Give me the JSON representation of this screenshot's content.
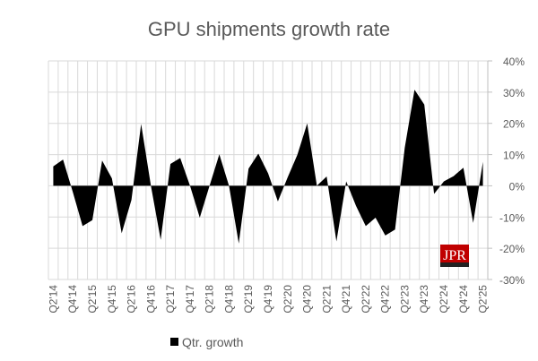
{
  "chart_data": {
    "type": "area",
    "title": "GPU shipments growth rate",
    "categories": [
      "Q2'14",
      "Q3'14",
      "Q4'14",
      "Q1'15",
      "Q2'15",
      "Q3'15",
      "Q4'15",
      "Q1'16",
      "Q2'16",
      "Q3'16",
      "Q4'16",
      "Q1'17",
      "Q2'17",
      "Q3'17",
      "Q4'17",
      "Q1'18",
      "Q2'18",
      "Q3'18",
      "Q4'18",
      "Q1'19",
      "Q2'19",
      "Q3'19",
      "Q4'19",
      "Q1'20",
      "Q2'20",
      "Q3'20",
      "Q4'20",
      "Q1'21",
      "Q2'21",
      "Q3'21",
      "Q4'21",
      "Q1'22",
      "Q2'22",
      "Q3'22",
      "Q4'22",
      "Q1'23",
      "Q2'23",
      "Q3'23",
      "Q4'23",
      "Q1'24",
      "Q2'24",
      "Q3'24",
      "Q4'24",
      "Q1'25",
      "Q2'25"
    ],
    "tick_labels": [
      "Q2'14",
      "Q4'14",
      "Q2'15",
      "Q4'15",
      "Q2'16",
      "Q4'16",
      "Q2'17",
      "Q4'17",
      "Q2'18",
      "Q4'18",
      "Q2'19",
      "Q4'19",
      "Q2'20",
      "Q4'20",
      "Q2'21",
      "Q4'21",
      "Q2'22",
      "Q4'22",
      "Q2'23",
      "Q4'23",
      "Q2'24",
      "Q4'24",
      "Q2'25"
    ],
    "series": [
      {
        "name": "Qtr. growth",
        "color": "#000000",
        "values": [
          6.2,
          8.4,
          -2,
          -12.9,
          -11,
          8.1,
          2.4,
          -15.2,
          -4.5,
          19.8,
          0,
          -17.3,
          7,
          8.9,
          0,
          -10.2,
          0,
          10.1,
          0,
          -18.5,
          5.5,
          10.3,
          4,
          -5,
          2.7,
          10,
          20,
          0,
          3,
          -17.8,
          1.4,
          -6.4,
          -12.9,
          -10.2,
          -15.9,
          -14,
          12.2,
          30.8,
          26,
          -2.6,
          1.4,
          3.1,
          5.8,
          -11.9,
          7.7
        ]
      }
    ],
    "ylim": [
      -30,
      40
    ],
    "yticks": [
      "-30%",
      "-20%",
      "-10%",
      "0%",
      "10%",
      "20%",
      "30%",
      "40%"
    ],
    "y_axis_position": "right",
    "grid": true,
    "legend": "bottom",
    "logo": "JPR"
  }
}
